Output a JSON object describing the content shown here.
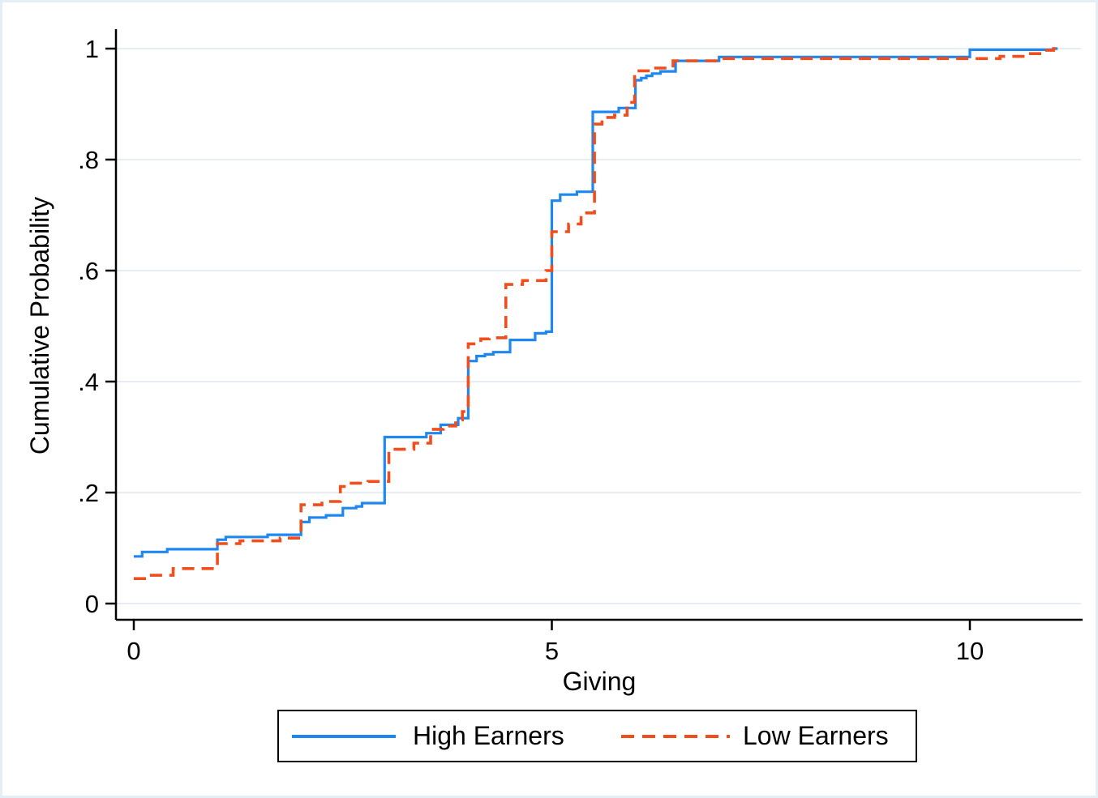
{
  "figure": {
    "background": "#ffffff",
    "outer_border_color": "#e3eef5",
    "gridline_color": "#e6eef3",
    "axis_color": "#000000",
    "text_color": "#000000"
  },
  "x_axis": {
    "title": "Giving",
    "tick_values": [
      0,
      5,
      10
    ],
    "tick_labels": [
      "0",
      "5",
      "10"
    ]
  },
  "y_axis": {
    "title": "Cumulative Probability",
    "tick_values": [
      0,
      0.2,
      0.4,
      0.6,
      0.8,
      1
    ],
    "tick_labels": [
      "0",
      ".2",
      ".4",
      ".6",
      ".8",
      "1"
    ]
  },
  "legend": {
    "high_label": "High Earners",
    "low_label": "Low Earners"
  },
  "chart_data": {
    "type": "line",
    "subtype": "step-cdf",
    "title": "",
    "xlabel": "Giving",
    "ylabel": "Cumulative Probability",
    "xlim": [
      -0.21,
      11.35
    ],
    "ylim": [
      0,
      1
    ],
    "grid": "horizontal-only",
    "legend_position": "bottom-outside",
    "x_end_extension": 11.05,
    "series": [
      {
        "name": "High Earners",
        "color": "#1e87f0",
        "line_style": "solid",
        "points": [
          [
            0,
            0.085
          ],
          [
            0.1,
            0.093
          ],
          [
            0.4,
            0.098
          ],
          [
            1.0,
            0.115
          ],
          [
            1.1,
            0.12
          ],
          [
            1.6,
            0.124
          ],
          [
            2.0,
            0.147
          ],
          [
            2.1,
            0.155
          ],
          [
            2.3,
            0.159
          ],
          [
            2.5,
            0.172
          ],
          [
            2.66,
            0.175
          ],
          [
            2.73,
            0.181
          ],
          [
            3.0,
            0.3
          ],
          [
            3.5,
            0.307
          ],
          [
            3.67,
            0.322
          ],
          [
            3.88,
            0.334
          ],
          [
            4.0,
            0.437
          ],
          [
            4.1,
            0.446
          ],
          [
            4.2,
            0.449
          ],
          [
            4.3,
            0.453
          ],
          [
            4.5,
            0.475
          ],
          [
            4.8,
            0.487
          ],
          [
            4.93,
            0.49
          ],
          [
            5.0,
            0.726
          ],
          [
            5.1,
            0.737
          ],
          [
            5.3,
            0.742
          ],
          [
            5.49,
            0.886
          ],
          [
            5.8,
            0.893
          ],
          [
            6.0,
            0.943
          ],
          [
            6.07,
            0.947
          ],
          [
            6.13,
            0.951
          ],
          [
            6.2,
            0.955
          ],
          [
            6.3,
            0.959
          ],
          [
            6.48,
            0.978
          ],
          [
            7.0,
            0.985
          ],
          [
            10.0,
            0.998
          ],
          [
            11.0,
            1.0
          ]
        ]
      },
      {
        "name": "Low Earners",
        "color": "#f04e1d",
        "line_style": "dashed",
        "points": [
          [
            0,
            0.045
          ],
          [
            0.15,
            0.051
          ],
          [
            0.47,
            0.063
          ],
          [
            1.0,
            0.108
          ],
          [
            1.27,
            0.113
          ],
          [
            1.75,
            0.118
          ],
          [
            2.0,
            0.178
          ],
          [
            2.25,
            0.184
          ],
          [
            2.47,
            0.211
          ],
          [
            2.6,
            0.217
          ],
          [
            2.8,
            0.22
          ],
          [
            3.05,
            0.278
          ],
          [
            3.35,
            0.289
          ],
          [
            3.55,
            0.314
          ],
          [
            3.7,
            0.32
          ],
          [
            3.85,
            0.331
          ],
          [
            3.93,
            0.346
          ],
          [
            4.0,
            0.468
          ],
          [
            4.15,
            0.477
          ],
          [
            4.25,
            0.479
          ],
          [
            4.45,
            0.575
          ],
          [
            4.65,
            0.582
          ],
          [
            4.93,
            0.6
          ],
          [
            5.0,
            0.67
          ],
          [
            5.2,
            0.684
          ],
          [
            5.35,
            0.704
          ],
          [
            5.51,
            0.864
          ],
          [
            5.6,
            0.876
          ],
          [
            5.75,
            0.88
          ],
          [
            5.9,
            0.903
          ],
          [
            5.99,
            0.96
          ],
          [
            6.2,
            0.965
          ],
          [
            6.45,
            0.978
          ],
          [
            7.0,
            0.982
          ],
          [
            10.36,
            0.986
          ],
          [
            10.68,
            0.991
          ],
          [
            10.86,
            0.997
          ],
          [
            11.0,
            1.0
          ]
        ]
      }
    ]
  }
}
